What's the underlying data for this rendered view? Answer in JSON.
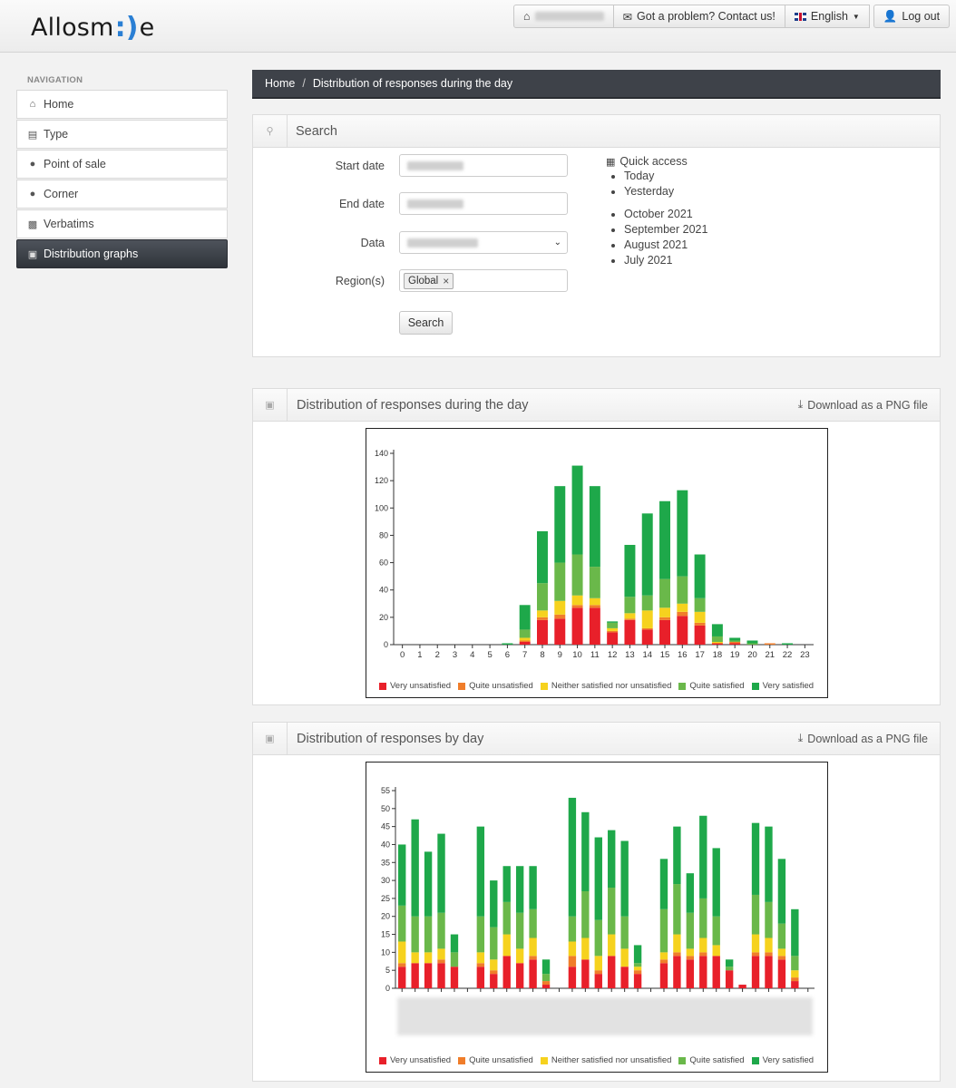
{
  "header": {
    "logo_text_left": "Allosm",
    "logo_text_right": "e",
    "contact_label": "Got a problem? Contact us!",
    "language_label": "English",
    "logout_label": "Log out"
  },
  "nav": {
    "title": "NAVIGATION",
    "items": [
      {
        "label": "Home",
        "icon": "home-icon"
      },
      {
        "label": "Type",
        "icon": "list-icon"
      },
      {
        "label": "Point of sale",
        "icon": "map-pin-icon"
      },
      {
        "label": "Corner",
        "icon": "map-pin-icon"
      },
      {
        "label": "Verbatims",
        "icon": "comment-icon"
      },
      {
        "label": "Distribution graphs",
        "icon": "chart-icon"
      }
    ],
    "active_index": 5
  },
  "breadcrumb": {
    "home": "Home",
    "separator": "/",
    "current": "Distribution of responses during the day"
  },
  "search_panel": {
    "title": "Search",
    "start_label": "Start date",
    "end_label": "End date",
    "data_label": "Data",
    "region_label": "Region(s)",
    "region_tag": "Global",
    "search_button": "Search",
    "quick_access": {
      "title": "Quick access",
      "group1": [
        "Today",
        "Yesterday"
      ],
      "group2": [
        "October 2021",
        "September 2021",
        "August 2021",
        "July 2021"
      ]
    }
  },
  "download_label": "Download as a PNG file",
  "legend_labels": [
    "Very unsatisfied",
    "Quite unsatisfied",
    "Neither satisfied nor unsatisfied",
    "Quite satisfied",
    "Very satisfied"
  ],
  "colors": {
    "very_unsatisfied": "#e8202a",
    "quite_unsatisfied": "#f07d2a",
    "neutral": "#f6d21e",
    "quite_satisfied": "#6ab84a",
    "very_satisfied": "#1ea84a"
  },
  "chart_data": [
    {
      "type": "bar",
      "title": "Distribution of responses during the day",
      "stacked": true,
      "categories": [
        "0",
        "1",
        "2",
        "3",
        "4",
        "5",
        "6",
        "7",
        "8",
        "9",
        "10",
        "11",
        "12",
        "13",
        "14",
        "15",
        "16",
        "17",
        "18",
        "19",
        "20",
        "21",
        "22",
        "23"
      ],
      "ylim": [
        0,
        140
      ],
      "yticks": [
        0,
        20,
        40,
        60,
        80,
        100,
        120,
        140
      ],
      "series": [
        {
          "name": "Very unsatisfied",
          "values": [
            0,
            0,
            0,
            0,
            0,
            0,
            0,
            2,
            18,
            19,
            27,
            27,
            9,
            18,
            11,
            18,
            21,
            14,
            1,
            1,
            0,
            0,
            0,
            0
          ]
        },
        {
          "name": "Quite unsatisfied",
          "values": [
            0,
            0,
            0,
            0,
            0,
            0,
            0,
            1,
            2,
            3,
            2,
            2,
            1,
            1,
            1,
            2,
            3,
            2,
            0,
            1,
            0,
            1,
            0,
            0
          ]
        },
        {
          "name": "Neither satisfied nor unsatisfied",
          "values": [
            0,
            0,
            0,
            0,
            0,
            0,
            0,
            2,
            5,
            10,
            7,
            5,
            2,
            4,
            13,
            7,
            6,
            8,
            1,
            0,
            0,
            0,
            0,
            0
          ]
        },
        {
          "name": "Quite satisfied",
          "values": [
            0,
            0,
            0,
            0,
            0,
            0,
            0,
            6,
            20,
            28,
            30,
            23,
            4,
            12,
            11,
            21,
            20,
            10,
            4,
            1,
            1,
            0,
            0,
            0
          ]
        },
        {
          "name": "Very satisfied",
          "values": [
            0,
            0,
            0,
            0,
            0,
            0,
            1,
            18,
            38,
            56,
            65,
            59,
            1,
            38,
            60,
            57,
            63,
            32,
            9,
            2,
            2,
            0,
            1,
            0
          ]
        }
      ],
      "legend_position": "bottom",
      "grid": false
    },
    {
      "type": "bar",
      "title": "Distribution of responses by day",
      "stacked": true,
      "categories": [
        "",
        "",
        "",
        "",
        "",
        "",
        "",
        "",
        "",
        "",
        "",
        "",
        "",
        "",
        "",
        "",
        "",
        "",
        "",
        "",
        "",
        "",
        "",
        "",
        "",
        "",
        "",
        "",
        "",
        "",
        "",
        ""
      ],
      "ylim": [
        0,
        55
      ],
      "yticks": [
        0,
        5,
        10,
        15,
        20,
        25,
        30,
        35,
        40,
        45,
        50,
        55
      ],
      "series": [
        {
          "name": "Very unsatisfied",
          "values": [
            6,
            7,
            7,
            7,
            6,
            0,
            6,
            4,
            9,
            7,
            8,
            1,
            0,
            6,
            8,
            4,
            9,
            6,
            4,
            0,
            7,
            9,
            8,
            9,
            9,
            5,
            1,
            9,
            9,
            8,
            2,
            0
          ]
        },
        {
          "name": "Quite unsatisfied",
          "values": [
            1,
            0,
            0,
            1,
            0,
            0,
            1,
            1,
            0,
            0,
            1,
            1,
            0,
            3,
            0,
            1,
            0,
            0,
            1,
            0,
            1,
            1,
            1,
            1,
            0,
            0,
            0,
            1,
            1,
            1,
            1,
            0
          ]
        },
        {
          "name": "Neither satisfied nor unsatisfied",
          "values": [
            6,
            3,
            3,
            3,
            0,
            0,
            3,
            3,
            6,
            4,
            5,
            0,
            0,
            4,
            6,
            4,
            6,
            5,
            1,
            0,
            2,
            5,
            2,
            4,
            3,
            0,
            0,
            5,
            4,
            2,
            2,
            0
          ]
        },
        {
          "name": "Quite satisfied",
          "values": [
            10,
            10,
            10,
            10,
            4,
            0,
            10,
            9,
            9,
            10,
            8,
            2,
            0,
            7,
            13,
            10,
            13,
            9,
            1,
            0,
            12,
            14,
            10,
            11,
            8,
            1,
            0,
            11,
            10,
            7,
            4,
            0
          ]
        },
        {
          "name": "Very satisfied",
          "values": [
            17,
            27,
            18,
            22,
            5,
            0,
            25,
            13,
            10,
            13,
            12,
            4,
            0,
            33,
            22,
            23,
            16,
            21,
            5,
            0,
            14,
            16,
            11,
            23,
            19,
            2,
            0,
            20,
            21,
            18,
            13,
            0
          ]
        }
      ],
      "legend_position": "bottom",
      "grid": false
    }
  ]
}
